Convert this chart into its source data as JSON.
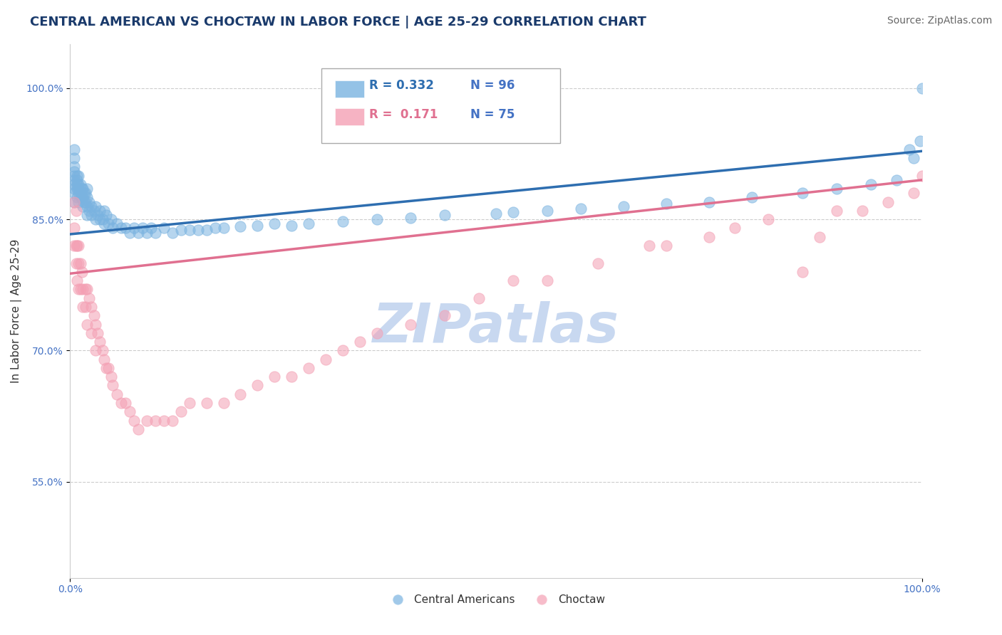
{
  "title": "CENTRAL AMERICAN VS CHOCTAW IN LABOR FORCE | AGE 25-29 CORRELATION CHART",
  "source_text": "Source: ZipAtlas.com",
  "ylabel": "In Labor Force | Age 25-29",
  "xlim": [
    0.0,
    1.0
  ],
  "ylim": [
    0.44,
    1.05
  ],
  "x_tick_labels": [
    "0.0%",
    "100.0%"
  ],
  "y_tick_positions": [
    0.55,
    0.7,
    0.85,
    1.0
  ],
  "y_tick_labels": [
    "55.0%",
    "70.0%",
    "85.0%",
    "100.0%"
  ],
  "title_color": "#1a3a6b",
  "title_fontsize": 13,
  "source_color": "#666666",
  "source_fontsize": 10,
  "ylabel_color": "#333333",
  "ylabel_fontsize": 11,
  "tick_label_color": "#4472c4",
  "tick_fontsize": 10,
  "watermark_text": "ZIPatlas",
  "watermark_color": "#c8d8f0",
  "watermark_fontsize": 55,
  "legend_r1": "R = 0.332",
  "legend_n1": "N = 96",
  "legend_r2": "R =  0.171",
  "legend_n2": "N = 75",
  "blue_color": "#7ab3e0",
  "pink_color": "#f4a0b4",
  "blue_line_color": "#2e6eb0",
  "pink_line_color": "#e07090",
  "grid_color": "#cccccc",
  "blue_scatter_x": [
    0.005,
    0.005,
    0.005,
    0.005,
    0.005,
    0.005,
    0.005,
    0.005,
    0.005,
    0.005,
    0.008,
    0.008,
    0.008,
    0.008,
    0.008,
    0.01,
    0.01,
    0.01,
    0.01,
    0.01,
    0.012,
    0.012,
    0.012,
    0.014,
    0.014,
    0.015,
    0.015,
    0.015,
    0.016,
    0.016,
    0.018,
    0.018,
    0.02,
    0.02,
    0.02,
    0.02,
    0.022,
    0.022,
    0.025,
    0.025,
    0.028,
    0.03,
    0.03,
    0.032,
    0.035,
    0.035,
    0.038,
    0.04,
    0.04,
    0.042,
    0.045,
    0.048,
    0.05,
    0.055,
    0.06,
    0.065,
    0.07,
    0.075,
    0.08,
    0.085,
    0.09,
    0.095,
    0.1,
    0.11,
    0.12,
    0.13,
    0.14,
    0.15,
    0.16,
    0.17,
    0.18,
    0.2,
    0.22,
    0.24,
    0.26,
    0.28,
    0.32,
    0.36,
    0.4,
    0.44,
    0.5,
    0.52,
    0.56,
    0.6,
    0.65,
    0.7,
    0.75,
    0.8,
    0.86,
    0.9,
    0.94,
    0.97,
    0.985,
    0.99,
    0.998,
    1.0
  ],
  "blue_scatter_y": [
    0.87,
    0.88,
    0.885,
    0.89,
    0.895,
    0.9,
    0.905,
    0.91,
    0.92,
    0.93,
    0.875,
    0.885,
    0.89,
    0.895,
    0.9,
    0.87,
    0.88,
    0.885,
    0.89,
    0.9,
    0.875,
    0.88,
    0.89,
    0.875,
    0.885,
    0.865,
    0.875,
    0.885,
    0.87,
    0.88,
    0.87,
    0.88,
    0.855,
    0.865,
    0.875,
    0.885,
    0.86,
    0.87,
    0.855,
    0.865,
    0.86,
    0.85,
    0.865,
    0.855,
    0.85,
    0.86,
    0.85,
    0.845,
    0.86,
    0.855,
    0.845,
    0.85,
    0.84,
    0.845,
    0.84,
    0.84,
    0.835,
    0.84,
    0.835,
    0.84,
    0.835,
    0.84,
    0.835,
    0.84,
    0.835,
    0.838,
    0.838,
    0.838,
    0.838,
    0.84,
    0.84,
    0.842,
    0.843,
    0.845,
    0.843,
    0.845,
    0.848,
    0.85,
    0.852,
    0.855,
    0.857,
    0.858,
    0.86,
    0.862,
    0.865,
    0.868,
    0.87,
    0.875,
    0.88,
    0.885,
    0.89,
    0.895,
    0.93,
    0.92,
    0.94,
    1.0
  ],
  "pink_scatter_x": [
    0.005,
    0.005,
    0.005,
    0.007,
    0.007,
    0.007,
    0.008,
    0.008,
    0.01,
    0.01,
    0.01,
    0.012,
    0.012,
    0.014,
    0.015,
    0.015,
    0.018,
    0.018,
    0.02,
    0.02,
    0.022,
    0.025,
    0.025,
    0.028,
    0.03,
    0.03,
    0.032,
    0.035,
    0.038,
    0.04,
    0.042,
    0.045,
    0.048,
    0.05,
    0.055,
    0.06,
    0.065,
    0.07,
    0.075,
    0.08,
    0.09,
    0.1,
    0.11,
    0.12,
    0.13,
    0.14,
    0.16,
    0.18,
    0.2,
    0.22,
    0.24,
    0.26,
    0.28,
    0.3,
    0.32,
    0.34,
    0.36,
    0.4,
    0.44,
    0.48,
    0.52,
    0.56,
    0.62,
    0.68,
    0.7,
    0.75,
    0.78,
    0.82,
    0.86,
    0.88,
    0.9,
    0.93,
    0.96,
    0.99,
    1.0
  ],
  "pink_scatter_y": [
    0.87,
    0.84,
    0.82,
    0.86,
    0.82,
    0.8,
    0.82,
    0.78,
    0.82,
    0.8,
    0.77,
    0.8,
    0.77,
    0.79,
    0.77,
    0.75,
    0.77,
    0.75,
    0.77,
    0.73,
    0.76,
    0.75,
    0.72,
    0.74,
    0.73,
    0.7,
    0.72,
    0.71,
    0.7,
    0.69,
    0.68,
    0.68,
    0.67,
    0.66,
    0.65,
    0.64,
    0.64,
    0.63,
    0.62,
    0.61,
    0.62,
    0.62,
    0.62,
    0.62,
    0.63,
    0.64,
    0.64,
    0.64,
    0.65,
    0.66,
    0.67,
    0.67,
    0.68,
    0.69,
    0.7,
    0.71,
    0.72,
    0.73,
    0.74,
    0.76,
    0.78,
    0.78,
    0.8,
    0.82,
    0.82,
    0.83,
    0.84,
    0.85,
    0.79,
    0.83,
    0.86,
    0.86,
    0.87,
    0.88,
    0.9
  ]
}
